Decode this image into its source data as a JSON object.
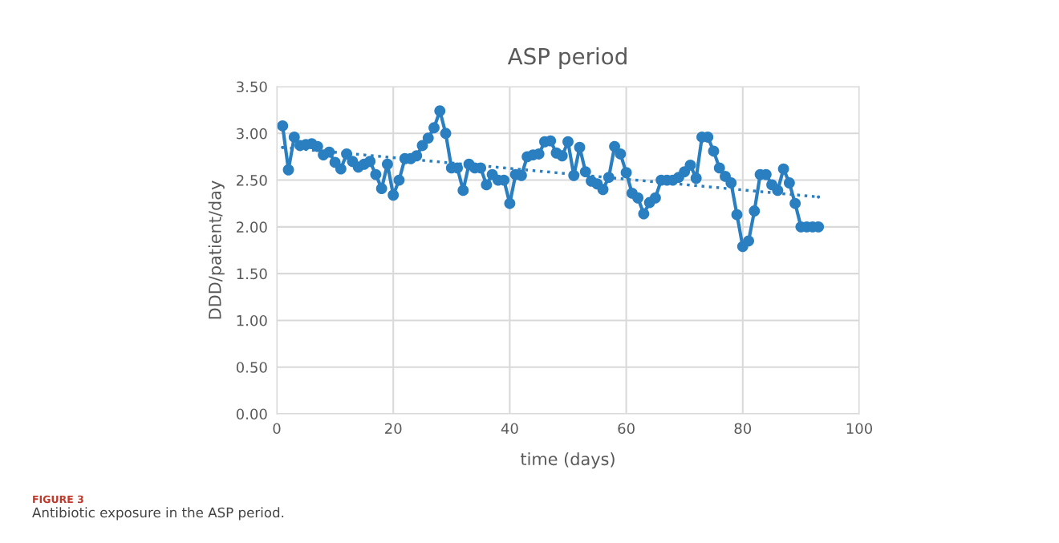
{
  "chart_data": {
    "type": "line",
    "title": "ASP period",
    "xlabel": "time (days)",
    "ylabel": "DDD/patient/day",
    "x": [
      1,
      2,
      3,
      4,
      5,
      6,
      7,
      8,
      9,
      10,
      11,
      12,
      13,
      14,
      15,
      16,
      17,
      18,
      19,
      20,
      21,
      22,
      23,
      24,
      25,
      26,
      27,
      28,
      29,
      30,
      31,
      32,
      33,
      34,
      35,
      36,
      37,
      38,
      39,
      40,
      41,
      42,
      43,
      44,
      45,
      46,
      47,
      48,
      49,
      50,
      51,
      52,
      53,
      54,
      55,
      56,
      57,
      58,
      59,
      60,
      61,
      62,
      63,
      64,
      65,
      66,
      67,
      68,
      69,
      70,
      71,
      72,
      73,
      74,
      75,
      76,
      77,
      78,
      79,
      80,
      81,
      82,
      83,
      84,
      85,
      86,
      87,
      88,
      89,
      90,
      91,
      92,
      93
    ],
    "series": [
      {
        "color": "#2a7fc1",
        "marker": "circle",
        "line_style": "solid",
        "values": [
          3.08,
          2.61,
          2.96,
          2.87,
          2.88,
          2.89,
          2.86,
          2.77,
          2.8,
          2.69,
          2.62,
          2.78,
          2.7,
          2.64,
          2.67,
          2.7,
          2.56,
          2.41,
          2.67,
          2.34,
          2.5,
          2.73,
          2.73,
          2.76,
          2.87,
          2.95,
          3.06,
          3.24,
          3.0,
          2.63,
          2.63,
          2.39,
          2.67,
          2.63,
          2.63,
          2.45,
          2.56,
          2.5,
          2.5,
          2.25,
          2.56,
          2.55,
          2.75,
          2.77,
          2.78,
          2.91,
          2.92,
          2.79,
          2.76,
          2.91,
          2.55,
          2.85,
          2.59,
          2.49,
          2.46,
          2.4,
          2.53,
          2.86,
          2.78,
          2.58,
          2.36,
          2.31,
          2.14,
          2.26,
          2.31,
          2.5,
          2.5,
          2.5,
          2.53,
          2.59,
          2.66,
          2.52,
          2.96,
          2.96,
          2.81,
          2.63,
          2.54,
          2.47,
          2.13,
          1.79,
          1.85,
          2.17,
          2.56,
          2.56,
          2.45,
          2.39,
          2.62,
          2.47,
          2.25,
          2.0,
          2.0,
          2.0,
          2.0
        ]
      },
      {
        "color": "#2a7fc1",
        "marker": "none",
        "line_style": "dotted",
        "x": [
          1,
          93
        ],
        "values": [
          2.85,
          2.32
        ]
      }
    ],
    "xlim": [
      0,
      100
    ],
    "xticks": [
      0,
      20,
      40,
      60,
      80,
      100
    ],
    "ylim": [
      0,
      3.5
    ],
    "yticks": [
      {
        "value": 0,
        "label": "0.00"
      },
      {
        "value": 0.5,
        "label": "0.50"
      },
      {
        "value": 1,
        "label": "1.00"
      },
      {
        "value": 1.5,
        "label": "1.50"
      },
      {
        "value": 2,
        "label": "2.00"
      },
      {
        "value": 2.5,
        "label": "2.50"
      },
      {
        "value": 3,
        "label": "3.00"
      },
      {
        "value": 3.5,
        "label": "3.50"
      }
    ],
    "grid": true,
    "annotations": [
      "FIGURE 3",
      "Antibiotic exposure in the ASP period."
    ]
  }
}
